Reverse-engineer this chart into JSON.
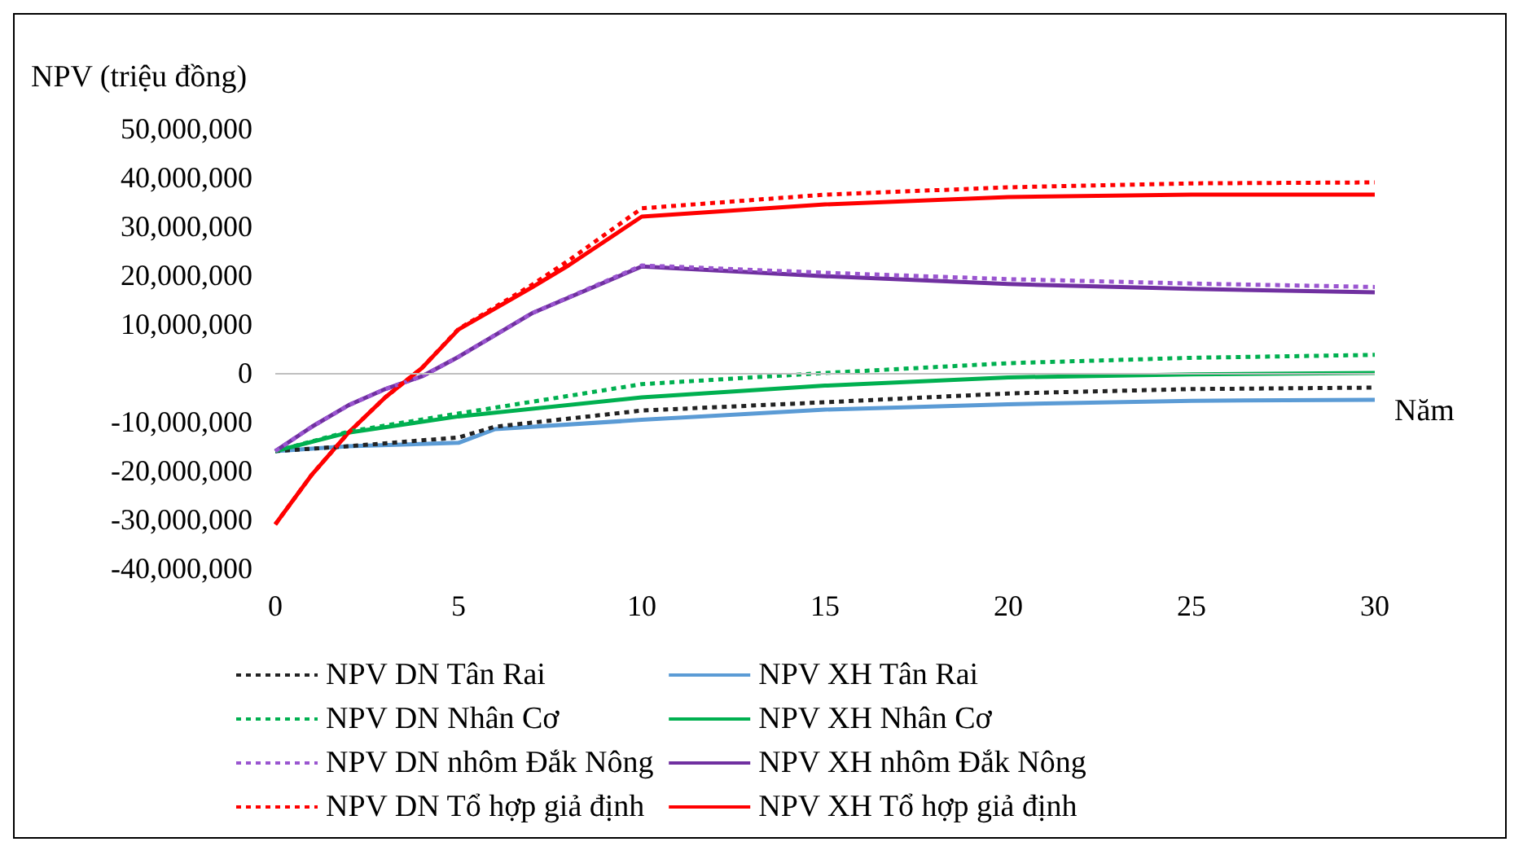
{
  "chart_data": {
    "type": "line",
    "ylabel": "NPV (triệu đồng)",
    "xlabel": "Năm",
    "xlim": [
      0,
      30
    ],
    "xticks": [
      0,
      5,
      10,
      15,
      20,
      25,
      30
    ],
    "ylim": [
      -40000000,
      50000000
    ],
    "yticks": [
      {
        "value": -40000000,
        "label": "-40,000,000"
      },
      {
        "value": -30000000,
        "label": "-30,000,000"
      },
      {
        "value": -20000000,
        "label": "-20,000,000"
      },
      {
        "value": -10000000,
        "label": "-10,000,000"
      },
      {
        "value": 0,
        "label": "0"
      },
      {
        "value": 10000000,
        "label": "10,000,000"
      },
      {
        "value": 20000000,
        "label": "20,000,000"
      },
      {
        "value": 30000000,
        "label": "30,000,000"
      },
      {
        "value": 40000000,
        "label": "40,000,000"
      },
      {
        "value": 50000000,
        "label": "50,000,000"
      }
    ],
    "grid": false,
    "legend": "bottom",
    "marker": "none",
    "ref_lines": [
      {
        "axis": "y",
        "value": 0,
        "color": "#bfbfbf"
      }
    ],
    "series": [
      {
        "name": "NPV DN Tân Rai",
        "color": "#222222",
        "line_style": "dotted",
        "x": [
          0,
          2,
          5,
          6,
          10,
          15,
          20,
          25,
          30
        ],
        "values": [
          -16000000,
          -15000000,
          -13200000,
          -11000000,
          -7700000,
          -6000000,
          -4200000,
          -3300000,
          -3000000
        ]
      },
      {
        "name": "NPV DN Nhân Cơ",
        "color": "#00b050",
        "line_style": "dotted",
        "x": [
          0,
          2,
          5,
          10,
          15,
          20,
          25,
          30
        ],
        "values": [
          -16000000,
          -12000000,
          -8300000,
          -2300000,
          0,
          2000000,
          3100000,
          3700000
        ]
      },
      {
        "name": "NPV DN nhôm Đắk Nông",
        "color": "#9a55d0",
        "line_style": "dotted",
        "x": [
          0,
          1,
          2,
          3,
          4,
          5,
          7,
          10,
          15,
          20,
          25,
          30
        ],
        "values": [
          -16000000,
          -11000000,
          -6600000,
          -3300000,
          -700000,
          3300000,
          12200000,
          22000000,
          20500000,
          19200000,
          18300000,
          17600000
        ]
      },
      {
        "name": "NPV DN Tổ hợp giả định",
        "color": "#ff0000",
        "line_style": "dotted",
        "x": [
          0,
          1,
          2,
          3,
          4,
          5,
          7,
          8,
          10,
          15,
          20,
          25,
          30
        ],
        "values": [
          -31000000,
          -20800000,
          -12200000,
          -5000000,
          1000000,
          9000000,
          18000000,
          23000000,
          33700000,
          36500000,
          38000000,
          38800000,
          39000000
        ]
      },
      {
        "name": "NPV XH Tân Rai",
        "color": "#5b9bd5",
        "line_style": "solid",
        "x": [
          0,
          2,
          5,
          6,
          10,
          15,
          20,
          25,
          30
        ],
        "values": [
          -16000000,
          -15000000,
          -14300000,
          -11500000,
          -9600000,
          -7500000,
          -6400000,
          -5700000,
          -5500000
        ]
      },
      {
        "name": "NPV XH Nhân Cơ",
        "color": "#00b050",
        "line_style": "solid",
        "x": [
          0,
          2,
          5,
          10,
          15,
          20,
          25,
          30
        ],
        "values": [
          -16000000,
          -12200000,
          -8900000,
          -5000000,
          -2600000,
          -900000,
          -300000,
          0
        ]
      },
      {
        "name": "NPV XH nhôm Đắk Nông",
        "color": "#7030a0",
        "line_style": "solid",
        "x": [
          0,
          1,
          2,
          3,
          4,
          5,
          7,
          10,
          15,
          20,
          25,
          30
        ],
        "values": [
          -16000000,
          -11000000,
          -6600000,
          -3300000,
          -700000,
          3300000,
          12200000,
          21800000,
          19800000,
          18200000,
          17200000,
          16500000
        ]
      },
      {
        "name": "NPV XH Tổ hợp giả định",
        "color": "#ff0000",
        "line_style": "solid",
        "x": [
          0,
          1,
          2,
          3,
          4,
          5,
          7,
          8,
          10,
          15,
          20,
          25,
          30
        ],
        "values": [
          -31000000,
          -20800000,
          -12200000,
          -5000000,
          1000000,
          8900000,
          17500000,
          22000000,
          32000000,
          34500000,
          36000000,
          36500000,
          36500000
        ]
      }
    ]
  }
}
